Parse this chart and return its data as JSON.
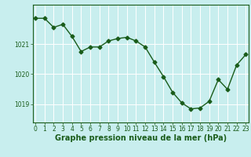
{
  "x": [
    0,
    1,
    2,
    3,
    4,
    5,
    6,
    7,
    8,
    9,
    10,
    11,
    12,
    13,
    14,
    15,
    16,
    17,
    18,
    19,
    20,
    21,
    22,
    23
  ],
  "y": [
    1021.85,
    1021.85,
    1021.55,
    1021.65,
    1021.25,
    1020.75,
    1020.9,
    1020.9,
    1021.1,
    1021.18,
    1021.22,
    1021.1,
    1020.9,
    1020.4,
    1019.92,
    1019.4,
    1019.05,
    1018.85,
    1018.88,
    1019.1,
    1019.82,
    1019.5,
    1020.3,
    1020.65
  ],
  "line_color": "#1a5c1a",
  "marker": "D",
  "markersize": 2.5,
  "linewidth": 1.0,
  "bg_color": "#c8eeee",
  "grid_color": "#ffffff",
  "xlabel": "Graphe pression niveau de la mer (hPa)",
  "xlabel_color": "#1a5c1a",
  "tick_color": "#1a5c1a",
  "ylim": [
    1018.4,
    1022.3
  ],
  "yticks": [
    1019,
    1020,
    1021
  ],
  "xticks": [
    0,
    1,
    2,
    3,
    4,
    5,
    6,
    7,
    8,
    9,
    10,
    11,
    12,
    13,
    14,
    15,
    16,
    17,
    18,
    19,
    20,
    21,
    22,
    23
  ],
  "xtick_labels": [
    "0",
    "1",
    "2",
    "3",
    "4",
    "5",
    "6",
    "7",
    "8",
    "9",
    "10",
    "11",
    "12",
    "13",
    "14",
    "15",
    "16",
    "17",
    "18",
    "19",
    "20",
    "21",
    "22",
    "23"
  ],
  "spine_color": "#1a5c1a",
  "xlabel_fontsize": 7,
  "tick_fontsize": 5.5,
  "fig_width": 3.2,
  "fig_height": 2.0,
  "dpi": 100,
  "xlim_left": -0.3,
  "xlim_right": 23.3
}
